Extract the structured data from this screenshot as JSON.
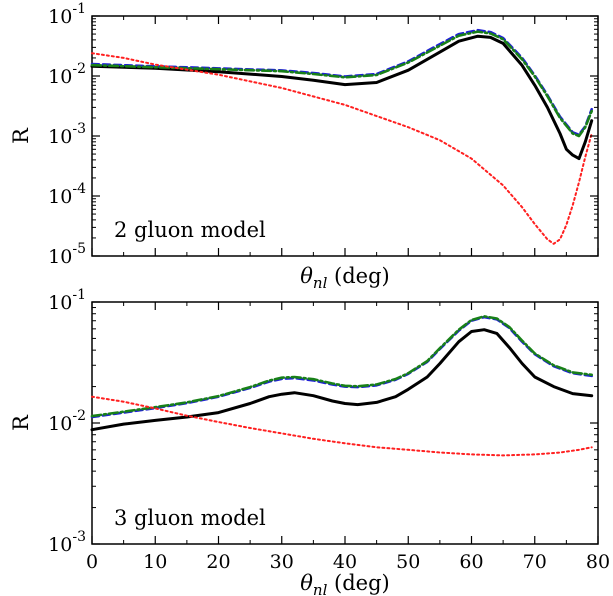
{
  "chart_data": [
    {
      "type": "line",
      "annotation": "2 gluon model",
      "xlabel": "θ_nl (deg)",
      "ylabel": "R",
      "xlim": [
        0,
        80
      ],
      "ylim": [
        1e-05,
        0.1
      ],
      "yscale": "log",
      "x_ticks": [
        0,
        10,
        20,
        30,
        40,
        50,
        60,
        70,
        80
      ],
      "x_tick_labels_shown": false,
      "y_ticks": [
        {
          "value": 1e-05,
          "mant": "10",
          "exp": "-5"
        },
        {
          "value": 0.0001,
          "mant": "10",
          "exp": "-4"
        },
        {
          "value": 0.001,
          "mant": "10",
          "exp": "-3"
        },
        {
          "value": 0.01,
          "mant": "10",
          "exp": "-2"
        },
        {
          "value": 0.1,
          "mant": "10",
          "exp": "-1"
        }
      ],
      "series": [
        {
          "style": "solid",
          "color": "#000000",
          "x": [
            0,
            10,
            20,
            30,
            35,
            40,
            45,
            50,
            55,
            58,
            61,
            63,
            65,
            68,
            70,
            72,
            74,
            75,
            76,
            77,
            78,
            79
          ],
          "y": [
            0.0145,
            0.0135,
            0.0118,
            0.0098,
            0.0085,
            0.0072,
            0.0078,
            0.0125,
            0.025,
            0.038,
            0.046,
            0.044,
            0.035,
            0.015,
            0.007,
            0.003,
            0.0011,
            0.0006,
            0.00048,
            0.00042,
            0.0008,
            0.0018
          ]
        },
        {
          "style": "dashed",
          "color": "#1f1fd6",
          "x": [
            0,
            10,
            20,
            30,
            35,
            40,
            45,
            50,
            55,
            58,
            61,
            63,
            65,
            68,
            70,
            72,
            74,
            76,
            77,
            78,
            79
          ],
          "y": [
            0.0158,
            0.0145,
            0.0134,
            0.0124,
            0.0112,
            0.0098,
            0.0108,
            0.0175,
            0.034,
            0.05,
            0.058,
            0.054,
            0.043,
            0.02,
            0.0102,
            0.0048,
            0.0021,
            0.00115,
            0.00105,
            0.00145,
            0.0028
          ]
        },
        {
          "style": "dashdot",
          "color": "#188018",
          "x": [
            0,
            10,
            20,
            30,
            35,
            40,
            45,
            50,
            55,
            58,
            61,
            63,
            65,
            68,
            70,
            72,
            74,
            76,
            77,
            78,
            79
          ],
          "y": [
            0.0152,
            0.014,
            0.013,
            0.012,
            0.0108,
            0.0095,
            0.0104,
            0.0168,
            0.032,
            0.047,
            0.055,
            0.051,
            0.041,
            0.019,
            0.0098,
            0.0046,
            0.002,
            0.0011,
            0.001,
            0.0014,
            0.0026
          ]
        },
        {
          "style": "dotted",
          "color": "#ff2020",
          "x": [
            0,
            5,
            10,
            20,
            30,
            40,
            50,
            55,
            60,
            65,
            68,
            70,
            72,
            73,
            74,
            75,
            76,
            77,
            78,
            79
          ],
          "y": [
            0.024,
            0.02,
            0.0155,
            0.0105,
            0.0063,
            0.0033,
            0.0014,
            0.00085,
            0.00042,
            0.00015,
            6.5e-05,
            3.4e-05,
            1.9e-05,
            1.6e-05,
            1.9e-05,
            3.3e-05,
            7e-05,
            0.00017,
            0.00045,
            0.0011
          ]
        }
      ]
    },
    {
      "type": "line",
      "annotation": "3 gluon model",
      "xlabel": "θ_nl (deg)",
      "ylabel": "R",
      "xlim": [
        0,
        80
      ],
      "ylim": [
        0.001,
        0.1
      ],
      "yscale": "log",
      "x_ticks": [
        0,
        10,
        20,
        30,
        40,
        50,
        60,
        70,
        80
      ],
      "x_tick_labels_shown": true,
      "y_ticks": [
        {
          "value": 0.001,
          "mant": "10",
          "exp": "-3"
        },
        {
          "value": 0.01,
          "mant": "10",
          "exp": "-2"
        },
        {
          "value": 0.1,
          "mant": "10",
          "exp": "-1"
        }
      ],
      "series": [
        {
          "style": "solid",
          "color": "#000000",
          "x": [
            0,
            5,
            10,
            15,
            20,
            25,
            28,
            30,
            32,
            35,
            38,
            40,
            42,
            45,
            48,
            50,
            53,
            55,
            58,
            60,
            62,
            64,
            66,
            68,
            70,
            73,
            76,
            79
          ],
          "y": [
            0.0088,
            0.0098,
            0.0105,
            0.0112,
            0.0122,
            0.0145,
            0.0165,
            0.0173,
            0.0178,
            0.0168,
            0.0152,
            0.0145,
            0.0142,
            0.0148,
            0.0165,
            0.019,
            0.024,
            0.031,
            0.047,
            0.057,
            0.059,
            0.055,
            0.042,
            0.031,
            0.024,
            0.02,
            0.0175,
            0.0168
          ]
        },
        {
          "style": "dashed",
          "color": "#1f1fd6",
          "x": [
            0,
            5,
            10,
            15,
            20,
            25,
            28,
            30,
            32,
            35,
            38,
            40,
            42,
            45,
            48,
            50,
            53,
            55,
            58,
            60,
            62,
            64,
            66,
            68,
            70,
            73,
            76,
            79
          ],
          "y": [
            0.0112,
            0.0122,
            0.0133,
            0.0146,
            0.0165,
            0.0195,
            0.022,
            0.0232,
            0.0235,
            0.0225,
            0.0208,
            0.02,
            0.0198,
            0.0205,
            0.0228,
            0.0255,
            0.032,
            0.041,
            0.058,
            0.07,
            0.075,
            0.072,
            0.061,
            0.047,
            0.037,
            0.0295,
            0.0258,
            0.0245
          ]
        },
        {
          "style": "dashdot",
          "color": "#188018",
          "x": [
            0,
            5,
            10,
            15,
            20,
            25,
            28,
            30,
            32,
            35,
            38,
            40,
            42,
            45,
            48,
            50,
            53,
            55,
            58,
            60,
            62,
            64,
            66,
            68,
            70,
            73,
            76,
            79
          ],
          "y": [
            0.0114,
            0.0124,
            0.0135,
            0.0148,
            0.0167,
            0.0198,
            0.0224,
            0.0237,
            0.024,
            0.023,
            0.0212,
            0.0203,
            0.0201,
            0.0208,
            0.0231,
            0.0258,
            0.0325,
            0.0415,
            0.059,
            0.071,
            0.076,
            0.073,
            0.062,
            0.048,
            0.0375,
            0.03,
            0.0262,
            0.025
          ]
        },
        {
          "style": "dotted",
          "color": "#ff2020",
          "x": [
            0,
            5,
            10,
            15,
            20,
            25,
            30,
            35,
            40,
            45,
            50,
            55,
            60,
            65,
            70,
            74,
            77,
            79
          ],
          "y": [
            0.0165,
            0.015,
            0.0132,
            0.0115,
            0.0102,
            0.0091,
            0.0082,
            0.0074,
            0.0068,
            0.0063,
            0.006,
            0.0057,
            0.0055,
            0.0054,
            0.0055,
            0.0057,
            0.006,
            0.0063
          ]
        }
      ]
    }
  ]
}
